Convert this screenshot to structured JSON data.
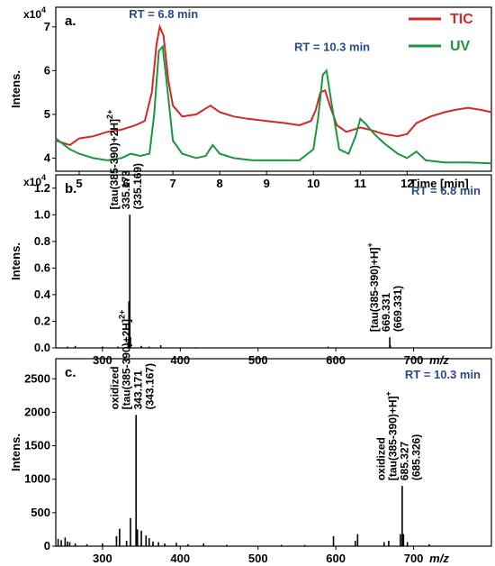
{
  "colors": {
    "tic": "#d62728",
    "uv": "#1a9641",
    "rt_label": "#2b4a8b",
    "spectrum": "#000000"
  },
  "chart_data": [
    {
      "type": "line",
      "panel_label": "a.",
      "ylabel": "Intens.",
      "xlabel": "Time [min]",
      "y_multiplier": "x10",
      "y_multiplier_exp": "4",
      "xlim": [
        4.5,
        13.8
      ],
      "ylim": [
        3.7,
        7.45
      ],
      "x_ticks": [
        5,
        6,
        7,
        8,
        9,
        10,
        11,
        12
      ],
      "y_ticks": [
        4,
        5,
        6,
        7
      ],
      "legend_position": "top-right",
      "annotations": [
        {
          "text": "RT = 6.8 min",
          "x": 6.8,
          "y": 7.2
        },
        {
          "text": "RT = 10.3 min",
          "x": 10.4,
          "y": 6.45
        }
      ],
      "series": [
        {
          "name": "TIC",
          "color_key": "tic",
          "points": [
            [
              4.5,
              4.4
            ],
            [
              4.8,
              4.3
            ],
            [
              5.0,
              4.45
            ],
            [
              5.3,
              4.5
            ],
            [
              5.6,
              4.6
            ],
            [
              5.9,
              4.65
            ],
            [
              6.2,
              4.75
            ],
            [
              6.4,
              4.85
            ],
            [
              6.55,
              5.5
            ],
            [
              6.65,
              6.6
            ],
            [
              6.72,
              7.0
            ],
            [
              6.8,
              6.8
            ],
            [
              6.9,
              5.8
            ],
            [
              7.0,
              5.2
            ],
            [
              7.2,
              4.95
            ],
            [
              7.5,
              5.0
            ],
            [
              7.8,
              5.2
            ],
            [
              8.0,
              5.05
            ],
            [
              8.3,
              4.95
            ],
            [
              8.6,
              4.9
            ],
            [
              9.0,
              4.85
            ],
            [
              9.4,
              4.8
            ],
            [
              9.7,
              4.75
            ],
            [
              9.95,
              4.85
            ],
            [
              10.05,
              5.1
            ],
            [
              10.15,
              5.5
            ],
            [
              10.25,
              5.55
            ],
            [
              10.35,
              5.2
            ],
            [
              10.5,
              4.75
            ],
            [
              10.7,
              4.6
            ],
            [
              11.0,
              4.7
            ],
            [
              11.2,
              4.65
            ],
            [
              11.5,
              4.55
            ],
            [
              11.8,
              4.5
            ],
            [
              12.0,
              4.55
            ],
            [
              12.2,
              4.8
            ],
            [
              12.5,
              4.95
            ],
            [
              12.8,
              5.05
            ],
            [
              13.0,
              5.1
            ],
            [
              13.3,
              5.15
            ],
            [
              13.6,
              5.1
            ],
            [
              13.8,
              5.05
            ]
          ]
        },
        {
          "name": "UV",
          "color_key": "uv",
          "points": [
            [
              4.5,
              4.45
            ],
            [
              4.8,
              4.2
            ],
            [
              5.0,
              4.1
            ],
            [
              5.3,
              4.0
            ],
            [
              5.6,
              3.95
            ],
            [
              5.9,
              4.0
            ],
            [
              6.1,
              4.1
            ],
            [
              6.3,
              4.05
            ],
            [
              6.5,
              4.1
            ],
            [
              6.6,
              5.0
            ],
            [
              6.7,
              6.45
            ],
            [
              6.78,
              6.55
            ],
            [
              6.88,
              5.6
            ],
            [
              7.0,
              4.4
            ],
            [
              7.2,
              4.1
            ],
            [
              7.5,
              4.0
            ],
            [
              7.7,
              4.05
            ],
            [
              7.85,
              4.3
            ],
            [
              8.0,
              4.1
            ],
            [
              8.3,
              4.0
            ],
            [
              8.7,
              3.95
            ],
            [
              9.2,
              3.95
            ],
            [
              9.7,
              3.95
            ],
            [
              10.0,
              4.2
            ],
            [
              10.1,
              4.9
            ],
            [
              10.2,
              5.9
            ],
            [
              10.28,
              6.0
            ],
            [
              10.38,
              5.3
            ],
            [
              10.55,
              4.2
            ],
            [
              10.75,
              4.1
            ],
            [
              10.9,
              4.5
            ],
            [
              11.0,
              4.9
            ],
            [
              11.1,
              4.8
            ],
            [
              11.3,
              4.55
            ],
            [
              11.5,
              4.35
            ],
            [
              11.8,
              4.1
            ],
            [
              12.0,
              4.0
            ],
            [
              12.2,
              4.15
            ],
            [
              12.4,
              3.95
            ],
            [
              12.8,
              3.9
            ],
            [
              13.3,
              3.9
            ],
            [
              13.8,
              3.88
            ]
          ]
        }
      ]
    },
    {
      "type": "bar",
      "panel_label": "b.",
      "ylabel": "Intens.",
      "xlabel": "m/z",
      "y_multiplier": "x10",
      "y_multiplier_exp": "4",
      "xlim": [
        240,
        800
      ],
      "ylim": [
        0,
        1.3
      ],
      "x_ticks": [
        300,
        400,
        500,
        600,
        700
      ],
      "y_ticks": [
        0.0,
        0.2,
        0.4,
        0.6,
        0.8,
        1.0,
        1.2
      ],
      "y_tick_labels": [
        "0.0",
        "0.2",
        "0.4",
        "0.6",
        "0.8",
        "1.0",
        "1.2"
      ],
      "rt_label": "RT = 6.8 min",
      "peaks": [
        [
          255,
          0.01
        ],
        [
          265,
          0.015
        ],
        [
          300,
          0.01
        ],
        [
          320,
          0.01
        ],
        [
          333,
          0.05
        ],
        [
          334,
          0.35
        ],
        [
          335.173,
          1.0
        ],
        [
          336,
          0.08
        ],
        [
          350,
          0.015
        ],
        [
          360,
          0.01
        ],
        [
          375,
          0.02
        ],
        [
          420,
          0.005
        ],
        [
          590,
          0.01
        ],
        [
          669.331,
          0.08
        ],
        [
          670,
          0.02
        ]
      ],
      "peak_labels": [
        {
          "mz": 335.173,
          "ion": "[tau(385-390)+2H]",
          "charge": "2+",
          "observed": "335.173",
          "theoretical": "(335.169)"
        },
        {
          "mz": 669.331,
          "ion": "[tau(385-390)+H]",
          "charge": "+",
          "observed": "669.331",
          "theoretical": "(669.331)"
        }
      ]
    },
    {
      "type": "bar",
      "panel_label": "c.",
      "ylabel": "Intens.",
      "xlabel": "m/z",
      "xlim": [
        240,
        800
      ],
      "ylim": [
        0,
        2800
      ],
      "x_ticks": [
        300,
        400,
        500,
        600,
        700
      ],
      "y_ticks": [
        0,
        500,
        1000,
        1500,
        2000,
        2500
      ],
      "y_tick_labels": [
        "0",
        "500",
        "1000",
        "1500",
        "2000",
        "2500"
      ],
      "rt_label": "RT = 10.3 min",
      "peaks": [
        [
          243,
          110
        ],
        [
          247,
          90
        ],
        [
          252,
          130
        ],
        [
          255,
          70
        ],
        [
          258,
          60
        ],
        [
          265,
          40
        ],
        [
          280,
          30
        ],
        [
          300,
          40
        ],
        [
          318,
          150
        ],
        [
          322,
          260
        ],
        [
          331,
          80
        ],
        [
          336,
          420
        ],
        [
          343.171,
          1960
        ],
        [
          345,
          250
        ],
        [
          350,
          230
        ],
        [
          356,
          160
        ],
        [
          360,
          120
        ],
        [
          365,
          70
        ],
        [
          372,
          60
        ],
        [
          380,
          40
        ],
        [
          395,
          50
        ],
        [
          410,
          30
        ],
        [
          430,
          40
        ],
        [
          460,
          20
        ],
        [
          530,
          20
        ],
        [
          560,
          20
        ],
        [
          597,
          150
        ],
        [
          625,
          80
        ],
        [
          628,
          180
        ],
        [
          662,
          60
        ],
        [
          668,
          80
        ],
        [
          683,
          180
        ],
        [
          685.327,
          900
        ],
        [
          687,
          180
        ],
        [
          692,
          60
        ],
        [
          720,
          30
        ]
      ],
      "peak_labels": [
        {
          "mz": 343.171,
          "prefix": "oxidized",
          "ion": "[tau(385-390)+2H]",
          "charge": "2+",
          "observed": "343.171",
          "theoretical": "(343.167)"
        },
        {
          "mz": 685.327,
          "prefix": "oxidized",
          "ion": "[tau(385-390)+H]",
          "charge": "+",
          "observed": "685.327",
          "theoretical": "(685.326)"
        }
      ]
    }
  ]
}
